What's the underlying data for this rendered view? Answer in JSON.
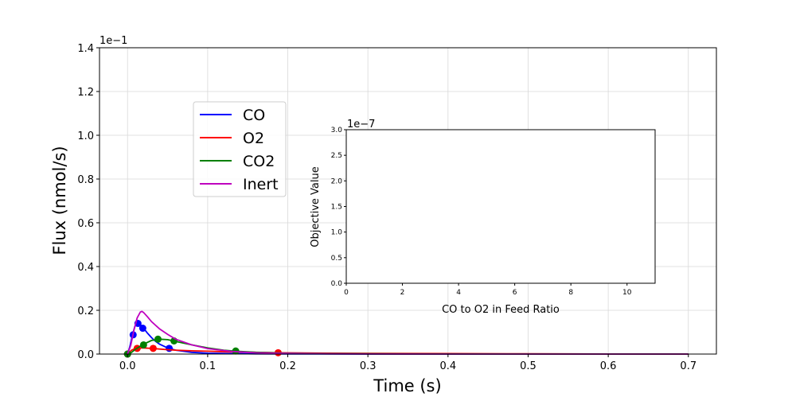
{
  "chart_data": [
    {
      "type": "line",
      "xlabel": "Time (s)",
      "ylabel": "Flux (nmol/s)",
      "xlim": [
        -0.035,
        0.735
      ],
      "ylim": [
        0,
        0.14
      ],
      "y_offset_label": "1e−1",
      "xticks": [
        0.0,
        0.1,
        0.2,
        0.3,
        0.4,
        0.5,
        0.6,
        0.7
      ],
      "xtick_labels": [
        "0.0",
        "0.1",
        "0.2",
        "0.3",
        "0.4",
        "0.5",
        "0.6",
        "0.7"
      ],
      "yticks": [
        0,
        0.02,
        0.04,
        0.06,
        0.08,
        0.1,
        0.12,
        0.14
      ],
      "ytick_labels": [
        "0.0",
        "0.2",
        "0.4",
        "0.6",
        "0.8",
        "1.0",
        "1.2",
        "1.4"
      ],
      "grid": true,
      "legend_position": "upper-left",
      "series": [
        {
          "name": "CO",
          "color": "#0000ff",
          "x": [
            0.0,
            0.003,
            0.006,
            0.009,
            0.012,
            0.016,
            0.02,
            0.025,
            0.03,
            0.035,
            0.04,
            0.05,
            0.06,
            0.08,
            0.1,
            0.13,
            0.16,
            0.2,
            0.25,
            0.3,
            0.4,
            0.5,
            0.6,
            0.7
          ],
          "y": [
            0.0,
            0.0035,
            0.0085,
            0.0125,
            0.0142,
            0.0135,
            0.0118,
            0.0095,
            0.0075,
            0.0058,
            0.0045,
            0.0028,
            0.0018,
            0.0008,
            0.0004,
            0.0002,
            0.0001,
            5e-05,
            2e-05,
            0.0,
            0.0,
            0.0,
            0.0,
            0.0
          ],
          "marker_x": [
            0.0,
            0.007,
            0.013,
            0.019,
            0.052
          ],
          "marker_y": [
            0.0,
            0.0088,
            0.014,
            0.0118,
            0.0026
          ]
        },
        {
          "name": "O2",
          "color": "#ff0000",
          "x": [
            0.0,
            0.005,
            0.01,
            0.015,
            0.02,
            0.03,
            0.04,
            0.05,
            0.06,
            0.08,
            0.1,
            0.13,
            0.16,
            0.19,
            0.25,
            0.3,
            0.4,
            0.5,
            0.6,
            0.7
          ],
          "y": [
            0.0,
            0.0018,
            0.0026,
            0.0028,
            0.0028,
            0.0026,
            0.0023,
            0.002,
            0.0018,
            0.0015,
            0.0013,
            0.001,
            0.0008,
            0.0006,
            0.0004,
            0.0003,
            0.0002,
            0.0001,
            5e-05,
            0.0
          ],
          "marker_x": [
            0.0,
            0.012,
            0.032,
            0.188
          ],
          "marker_y": [
            0.0,
            0.0026,
            0.0026,
            0.0006
          ]
        },
        {
          "name": "CO2",
          "color": "#008000",
          "x": [
            0.0,
            0.005,
            0.01,
            0.02,
            0.03,
            0.04,
            0.05,
            0.06,
            0.08,
            0.1,
            0.12,
            0.135,
            0.16,
            0.2,
            0.25,
            0.3,
            0.4,
            0.5,
            0.6,
            0.7
          ],
          "y": [
            0.0,
            0.0008,
            0.0022,
            0.0045,
            0.0062,
            0.0068,
            0.0066,
            0.0058,
            0.0042,
            0.0028,
            0.0018,
            0.0013,
            0.0008,
            0.0004,
            0.0002,
            0.0001,
            5e-05,
            0.0,
            0.0,
            0.0
          ],
          "marker_x": [
            0.0,
            0.02,
            0.038,
            0.058,
            0.135
          ],
          "marker_y": [
            0.0,
            0.0042,
            0.0068,
            0.006,
            0.0014
          ]
        },
        {
          "name": "Inert",
          "color": "#bf00bf",
          "x": [
            0.0,
            0.004,
            0.008,
            0.012,
            0.016,
            0.018,
            0.02,
            0.025,
            0.03,
            0.04,
            0.05,
            0.06,
            0.08,
            0.1,
            0.13,
            0.16,
            0.2,
            0.25,
            0.3,
            0.4,
            0.5,
            0.6,
            0.7
          ],
          "y": [
            0.0,
            0.004,
            0.011,
            0.0165,
            0.0192,
            0.0195,
            0.019,
            0.017,
            0.0148,
            0.0115,
            0.009,
            0.0068,
            0.0042,
            0.0025,
            0.0012,
            0.0006,
            0.0003,
            0.0001,
            5e-05,
            0.0,
            0.0,
            0.0,
            0.0
          ]
        }
      ]
    },
    {
      "type": "scatter",
      "xlabel": "CO to O2 in Feed Ratio",
      "ylabel": "Objective Value",
      "xlim": [
        0,
        11
      ],
      "ylim": [
        0,
        3e-07
      ],
      "y_offset_label": "1e−7",
      "xticks": [
        0,
        2,
        4,
        6,
        8,
        10
      ],
      "xtick_labels": [
        "0",
        "2",
        "4",
        "6",
        "8",
        "10"
      ],
      "yticks": [
        0,
        5e-08,
        1e-07,
        1.5e-07,
        2e-07,
        2.5e-07,
        3e-07
      ],
      "ytick_labels": [
        "0.0",
        "0.5",
        "1.0",
        "1.5",
        "2.0",
        "2.5",
        "3.0"
      ],
      "grid": false,
      "series": []
    }
  ]
}
